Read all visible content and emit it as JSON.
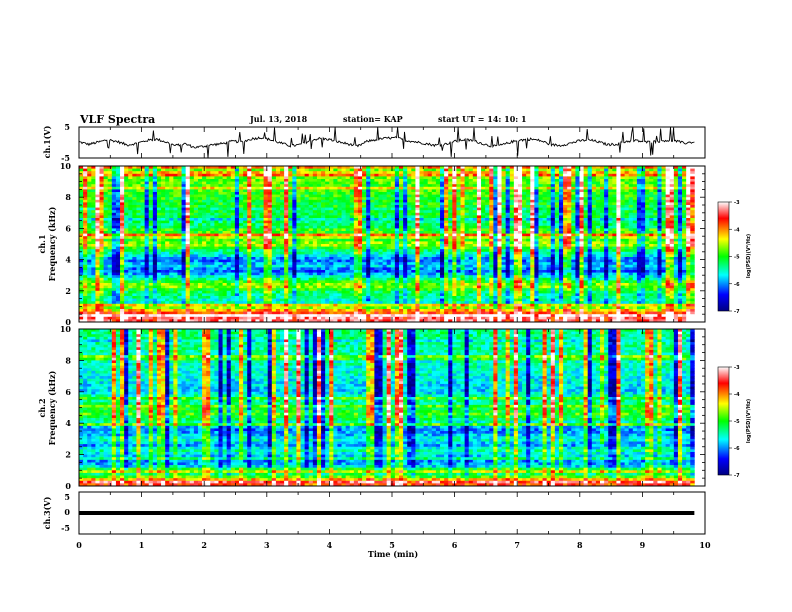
{
  "header": {
    "title": "VLF Spectra",
    "date": "Jul. 13, 2018",
    "station": "station= KAP",
    "start": "start  UT =   14: 10: 1"
  },
  "chart_data": [
    {
      "type": "line",
      "name": "ch1-waveform",
      "ylabel": "ch.1(V)",
      "ylim": [
        -5,
        5
      ],
      "yticks": [
        "5",
        "-5"
      ],
      "xlim": [
        0,
        10
      ],
      "x_extent_min": 9.83,
      "level_trace": [
        0.2,
        -0.6,
        0.1,
        0.9,
        0.3,
        -0.8,
        -0.3,
        0.6,
        1.1,
        0.2,
        -1.0,
        -0.4,
        -1.6,
        -1.2,
        -0.7,
        -0.3,
        0.4,
        0.2,
        1.2,
        1.6,
        0.8,
        -0.2,
        -1.1,
        -0.7,
        0.6,
        1.3,
        1.0,
        0.2,
        -0.5,
        -1.2,
        0.4,
        1.0,
        1.4,
        1.5,
        0.7,
        0.2,
        -0.3,
        -0.9,
        -0.6,
        0.3,
        0.9,
        0.6,
        -0.4,
        -1.3,
        -0.8,
        0.2,
        0.8,
        1.1,
        0.6,
        -0.6,
        -1.0,
        -0.3,
        0.5,
        0.9,
        0.2,
        -0.7,
        -0.5,
        0.4,
        0.6,
        0.1,
        0.3,
        0.7,
        0.5,
        -0.2,
        0.2
      ]
    },
    {
      "type": "heatmap",
      "name": "ch1-spectrogram",
      "ylabel": "ch.1\nFrequency (kHz)",
      "xlim": [
        0,
        10
      ],
      "ylim": [
        0,
        10
      ],
      "yticks": [
        "0",
        "2",
        "4",
        "6",
        "8",
        "10"
      ],
      "x_extent_min": 9.83,
      "colorbar": {
        "label": "log(PSD)(V²/Hz)",
        "range": [
          -7,
          -3
        ],
        "ticks": [
          "-3",
          "-4",
          "-5",
          "-6",
          "-7"
        ]
      },
      "profile_khz": [
        0.3,
        0.7,
        1.0,
        1.3,
        1.6,
        2.0,
        2.3,
        2.6,
        3.0,
        3.3,
        3.6,
        4.0,
        4.3,
        4.6,
        5.0,
        5.3,
        5.6,
        6.0,
        6.5,
        7.0,
        8.0,
        9.0,
        10.0
      ],
      "profile_log_psd": [
        -3.6,
        -4.2,
        -5.2,
        -5.6,
        -5.4,
        -5.2,
        -4.5,
        -5.0,
        -5.8,
        -6.2,
        -5.8,
        -6.1,
        -5.6,
        -5.2,
        -4.6,
        -4.9,
        -4.7,
        -5.2,
        -5.3,
        -5.1,
        -5.0,
        -4.8,
        -4.6
      ]
    },
    {
      "type": "heatmap",
      "name": "ch2-spectrogram",
      "ylabel": "ch.2\nFrequency (kHz)",
      "xlim": [
        0,
        10
      ],
      "ylim": [
        0,
        10
      ],
      "yticks": [
        "0",
        "2",
        "4",
        "6",
        "8",
        "10"
      ],
      "x_extent_min": 9.83,
      "colorbar": {
        "label": "log(PSD)(V²/Hz)",
        "range": [
          -7,
          -3
        ],
        "ticks": [
          "-3",
          "-4",
          "-5",
          "-6",
          "-7"
        ]
      },
      "profile_khz": [
        0.3,
        0.7,
        1.0,
        1.3,
        1.6,
        2.0,
        2.3,
        2.6,
        3.0,
        3.3,
        3.6,
        4.0,
        4.3,
        4.6,
        5.0,
        5.3,
        5.6,
        6.0,
        6.5,
        7.0,
        8.0,
        9.0,
        10.0
      ],
      "profile_log_psd": [
        -4.0,
        -5.6,
        -5.2,
        -5.8,
        -6.0,
        -5.7,
        -5.4,
        -6.0,
        -5.5,
        -5.9,
        -6.0,
        -5.6,
        -5.2,
        -5.0,
        -5.1,
        -5.4,
        -5.3,
        -5.8,
        -5.7,
        -5.6,
        -5.5,
        -5.4,
        -5.3
      ]
    },
    {
      "type": "line",
      "name": "ch3-waveform",
      "ylabel": "ch.3(V)",
      "ylim": [
        -5,
        5
      ],
      "yticks": [
        "5",
        "0",
        "-5"
      ],
      "xlim": [
        0,
        10
      ],
      "x_extent_min": 9.83,
      "level": 0
    }
  ],
  "xaxis": {
    "label": "Time (min)",
    "ticks": [
      "0",
      "1",
      "2",
      "3",
      "4",
      "5",
      "6",
      "7",
      "8",
      "9",
      "10"
    ]
  },
  "colors": {
    "colormap": [
      "#000080",
      "#0000ff",
      "#00ffff",
      "#00ff00",
      "#ffff00",
      "#ff0000",
      "#ffffff"
    ]
  }
}
